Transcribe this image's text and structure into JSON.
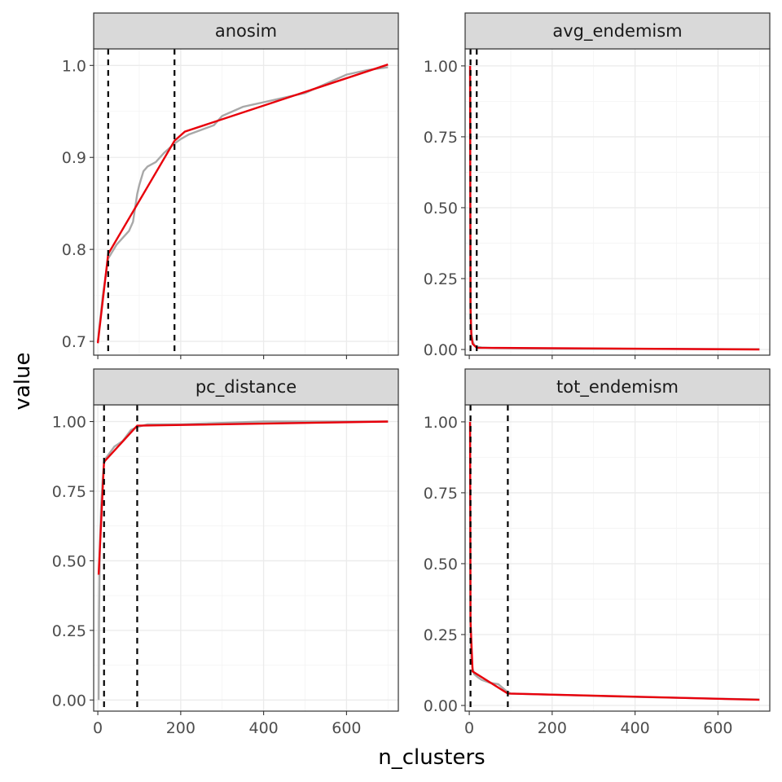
{
  "chart_data": {
    "type": "line",
    "layout": "facet_wrap 2x2",
    "xlabel": "n_clusters",
    "ylabel": "value",
    "xlim": [
      -10,
      725
    ],
    "xticks": [
      0,
      200,
      400,
      600
    ],
    "grid": true,
    "legend": "none",
    "colors": {
      "raw": "#a8a8a8",
      "fit": "#e8000b",
      "cutoff": "#000000"
    },
    "facets": [
      {
        "name": "anosim",
        "ylim": [
          0.685,
          1.018
        ],
        "yticks": [
          0.7,
          0.8,
          0.9,
          1.0
        ],
        "ytick_labels": [
          "0.7",
          "0.8",
          "0.9",
          "1.0"
        ],
        "cutoffs": [
          25,
          185
        ],
        "raw": {
          "x": [
            0,
            5,
            12,
            25,
            45,
            65,
            75,
            85,
            95,
            100,
            110,
            120,
            140,
            160,
            185,
            200,
            220,
            250,
            280,
            300,
            350,
            400,
            450,
            500,
            550,
            600,
            650,
            700
          ],
          "y": [
            0.7,
            0.72,
            0.75,
            0.79,
            0.805,
            0.815,
            0.82,
            0.83,
            0.86,
            0.87,
            0.885,
            0.89,
            0.895,
            0.905,
            0.915,
            0.92,
            0.925,
            0.93,
            0.935,
            0.945,
            0.955,
            0.96,
            0.965,
            0.97,
            0.98,
            0.99,
            0.995,
            0.998
          ]
        },
        "fit": {
          "x": [
            0,
            25,
            185,
            210,
            700
          ],
          "y": [
            0.698,
            0.795,
            0.918,
            0.928,
            1.001
          ]
        }
      },
      {
        "name": "avg_endemism",
        "ylim": [
          -0.02,
          1.06
        ],
        "yticks": [
          0,
          0.25,
          0.5,
          0.75,
          1.0
        ],
        "ytick_labels": [
          "0.00",
          "0.25",
          "0.50",
          "0.75",
          "1.00"
        ],
        "cutoffs": [
          3,
          18
        ],
        "raw": {
          "x": [
            2,
            3,
            5,
            8,
            12,
            18,
            30,
            60,
            100,
            200,
            400,
            700
          ],
          "y": [
            1.0,
            0.15,
            0.06,
            0.03,
            0.015,
            0.01,
            0.007,
            0.005,
            0.004,
            0.003,
            0.002,
            0.001
          ]
        },
        "fit": {
          "x": [
            2,
            3,
            5,
            8,
            18,
            700
          ],
          "y": [
            1.0,
            0.15,
            0.05,
            0.02,
            0.006,
            0.0
          ]
        }
      },
      {
        "name": "pc_distance",
        "ylim": [
          -0.04,
          1.06
        ],
        "yticks": [
          0,
          0.25,
          0.5,
          0.75,
          1.0
        ],
        "ytick_labels": [
          "0.00",
          "0.25",
          "0.50",
          "0.75",
          "1.00"
        ],
        "cutoffs": [
          15,
          95
        ],
        "raw": {
          "x": [
            2,
            3,
            5,
            8,
            12,
            15,
            20,
            30,
            40,
            50,
            60,
            70,
            80,
            95,
            120,
            200,
            400,
            700
          ],
          "y": [
            0.0,
            0.3,
            0.55,
            0.7,
            0.8,
            0.85,
            0.87,
            0.89,
            0.91,
            0.92,
            0.93,
            0.95,
            0.97,
            0.98,
            0.99,
            0.99,
            1.0,
            1.0
          ]
        },
        "fit": {
          "x": [
            2,
            15,
            95,
            700
          ],
          "y": [
            0.45,
            0.855,
            0.985,
            1.0
          ]
        }
      },
      {
        "name": "tot_endemism",
        "ylim": [
          -0.02,
          1.06
        ],
        "yticks": [
          0,
          0.25,
          0.5,
          0.75,
          1.0
        ],
        "ytick_labels": [
          "0.00",
          "0.25",
          "0.50",
          "0.75",
          "1.00"
        ],
        "cutoffs": [
          3,
          93
        ],
        "raw": {
          "x": [
            2,
            3,
            5,
            8,
            12,
            20,
            30,
            50,
            70,
            90,
            100,
            150,
            200,
            300,
            400,
            500,
            600,
            700
          ],
          "y": [
            1.0,
            0.3,
            0.16,
            0.13,
            0.11,
            0.1,
            0.09,
            0.08,
            0.075,
            0.05,
            0.042,
            0.04,
            0.038,
            0.034,
            0.03,
            0.027,
            0.024,
            0.021
          ]
        },
        "fit": {
          "x": [
            2,
            3,
            8,
            93,
            700
          ],
          "y": [
            1.0,
            0.3,
            0.12,
            0.042,
            0.02
          ]
        }
      }
    ]
  }
}
